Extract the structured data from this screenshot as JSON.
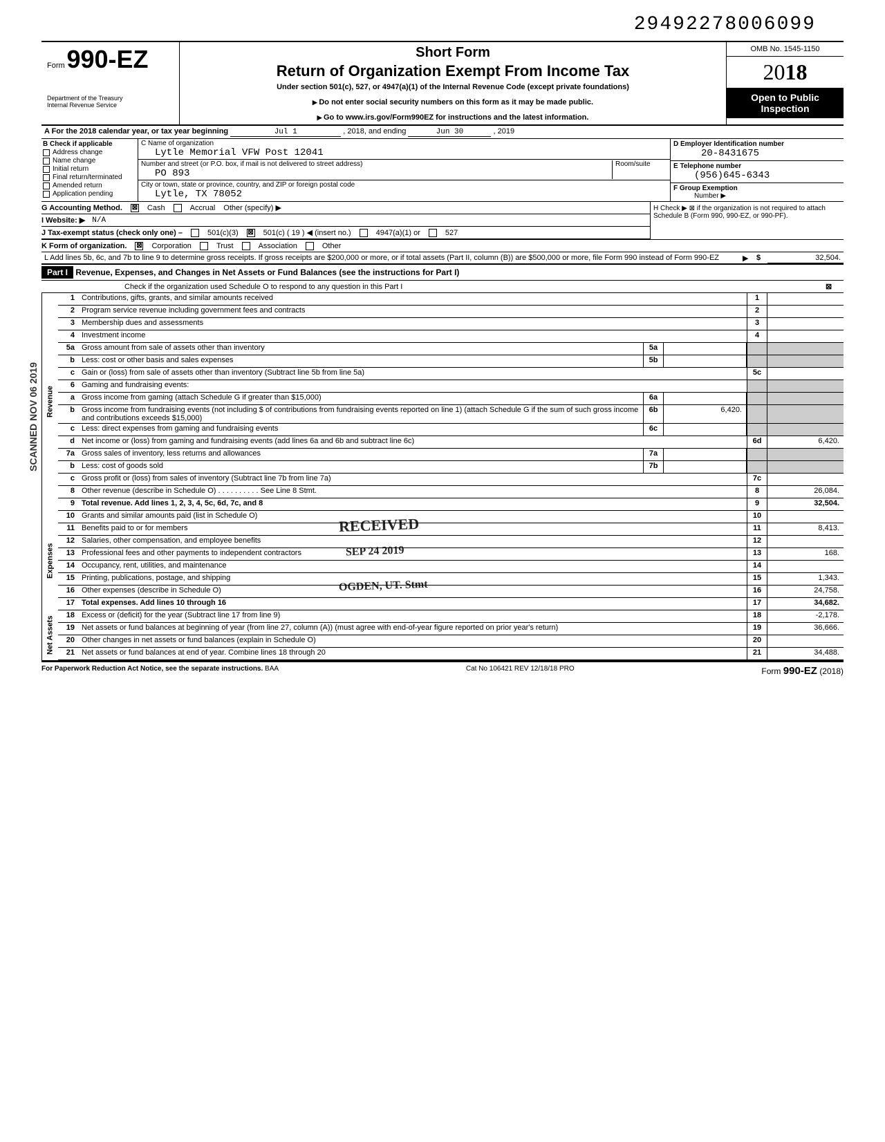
{
  "document_number": "29492278006099",
  "omb": "OMB No. 1545-1150",
  "form": {
    "prefix": "Form",
    "number": "990-EZ",
    "title_short": "Short Form",
    "title_main": "Return of Organization Exempt From Income Tax",
    "subtitle": "Under section 501(c), 527, or 4947(a)(1) of the Internal Revenue Code (except private foundations)",
    "instr1": "Do not enter social security numbers on this form as it may be made public.",
    "instr2": "Go to www.irs.gov/Form990EZ for instructions and the latest information.",
    "dept1": "Department of the Treasury",
    "dept2": "Internal Revenue Service",
    "year_prefix": "20",
    "year_bold": "18",
    "open_public": "Open to Public Inspection"
  },
  "row_a": {
    "label": "A For the 2018 calendar year, or tax year beginning",
    "begin": "Jul 1",
    "mid": ", 2018, and ending",
    "end": "Jun 30",
    "end_year": ", 2019"
  },
  "section_b": {
    "header": "B Check if applicable",
    "items": [
      "Address change",
      "Name change",
      "Initial return",
      "Final return/terminated",
      "Amended return",
      "Application pending"
    ]
  },
  "section_c": {
    "label_name": "C Name of organization",
    "org_name": "Lytle Memorial VFW Post 12041",
    "label_street": "Number and street (or P.O. box, if mail is not delivered to street address)",
    "room_label": "Room/suite",
    "street": "PO 893",
    "label_city": "City or town, state or province, country, and ZIP or foreign postal code",
    "city": "Lytle, TX 78052"
  },
  "section_d": {
    "label": "D Employer Identification number",
    "value": "20-8431675"
  },
  "section_e": {
    "label": "E Telephone number",
    "value": "(956)645-6343"
  },
  "section_f": {
    "label": "F Group Exemption",
    "number_label": "Number ▶"
  },
  "line_g": {
    "label": "G Accounting Method.",
    "opts": [
      "Cash",
      "Accrual",
      "Other (specify) ▶"
    ],
    "checked": 0
  },
  "line_h": "H Check ▶ ⊠ if the organization is not required to attach Schedule B (Form 990, 990-EZ, or 990-PF).",
  "line_i": {
    "label": "I Website: ▶",
    "value": "N/A"
  },
  "line_j": {
    "label": "J Tax-exempt status (check only one) –",
    "opts": [
      "501(c)(3)",
      "501(c) ( 19 ) ◀ (insert no.)",
      "4947(a)(1) or",
      "527"
    ],
    "checked": 1
  },
  "line_k": {
    "label": "K Form of organization.",
    "opts": [
      "Corporation",
      "Trust",
      "Association",
      "Other"
    ],
    "checked": 0
  },
  "line_l": {
    "text": "L Add lines 5b, 6c, and 7b to line 9 to determine gross receipts. If gross receipts are $200,000 or more, or if total assets (Part II, column (B)) are $500,000 or more, file Form 990 instead of Form 990-EZ",
    "value": "32,504."
  },
  "part1": {
    "label": "Part I",
    "title": "Revenue, Expenses, and Changes in Net Assets or Fund Balances (see the instructions for Part I)",
    "check_line": "Check if the organization used Schedule O to respond to any question in this Part I",
    "checked": "⊠"
  },
  "side_labels": {
    "revenue": "Revenue",
    "expenses": "Expenses",
    "net_assets": "Net Assets"
  },
  "stamps": {
    "scanned": "SCANNED NOV 06 2019",
    "received": "RECEIVED",
    "received_date": "SEP 24 2019",
    "ogden": "OGDEN, UT. Stmt"
  },
  "rows": [
    {
      "n": "1",
      "desc": "Contributions, gifts, grants, and similar amounts received",
      "rn": "1",
      "rv": ""
    },
    {
      "n": "2",
      "desc": "Program service revenue including government fees and contracts",
      "rn": "2",
      "rv": ""
    },
    {
      "n": "3",
      "desc": "Membership dues and assessments",
      "rn": "3",
      "rv": ""
    },
    {
      "n": "4",
      "desc": "Investment income",
      "rn": "4",
      "rv": ""
    },
    {
      "n": "5a",
      "desc": "Gross amount from sale of assets other than inventory",
      "mn": "5a",
      "mv": "",
      "shaded": true
    },
    {
      "n": "b",
      "desc": "Less: cost or other basis and sales expenses",
      "mn": "5b",
      "mv": "",
      "shaded": true
    },
    {
      "n": "c",
      "desc": "Gain or (loss) from sale of assets other than inventory (Subtract line 5b from line 5a)",
      "rn": "5c",
      "rv": ""
    },
    {
      "n": "6",
      "desc": "Gaming and fundraising events:",
      "header": true,
      "shaded": true
    },
    {
      "n": "a",
      "desc": "Gross income from gaming (attach Schedule G if greater than $15,000)",
      "mn": "6a",
      "mv": "",
      "shaded": true
    },
    {
      "n": "b",
      "desc": "Gross income from fundraising events (not including $             of contributions from fundraising events reported on line 1) (attach Schedule G if the sum of such gross income and contributions exceeds $15,000)",
      "mn": "6b",
      "mv": "6,420.",
      "shaded": true
    },
    {
      "n": "c",
      "desc": "Less: direct expenses from gaming and fundraising events",
      "mn": "6c",
      "mv": "",
      "shaded": true
    },
    {
      "n": "d",
      "desc": "Net income or (loss) from gaming and fundraising events (add lines 6a and 6b and subtract line 6c)",
      "rn": "6d",
      "rv": "6,420."
    },
    {
      "n": "7a",
      "desc": "Gross sales of inventory, less returns and allowances",
      "mn": "7a",
      "mv": "",
      "shaded": true
    },
    {
      "n": "b",
      "desc": "Less: cost of goods sold",
      "mn": "7b",
      "mv": "",
      "shaded": true
    },
    {
      "n": "c",
      "desc": "Gross profit or (loss) from sales of inventory (Subtract line 7b from line 7a)",
      "rn": "7c",
      "rv": ""
    },
    {
      "n": "8",
      "desc": "Other revenue (describe in Schedule O) . . . . . . . . . . See Line 8 Stmt.",
      "rn": "8",
      "rv": "26,084."
    },
    {
      "n": "9",
      "desc": "Total revenue. Add lines 1, 2, 3, 4, 5c, 6d, 7c, and 8",
      "rn": "9",
      "rv": "32,504.",
      "bold": true
    }
  ],
  "expense_rows": [
    {
      "n": "10",
      "desc": "Grants and similar amounts paid (list in Schedule O)",
      "rn": "10",
      "rv": ""
    },
    {
      "n": "11",
      "desc": "Benefits paid to or for members",
      "rn": "11",
      "rv": "8,413."
    },
    {
      "n": "12",
      "desc": "Salaries, other compensation, and employee benefits",
      "rn": "12",
      "rv": ""
    },
    {
      "n": "13",
      "desc": "Professional fees and other payments to independent contractors",
      "rn": "13",
      "rv": "168."
    },
    {
      "n": "14",
      "desc": "Occupancy, rent, utilities, and maintenance",
      "rn": "14",
      "rv": ""
    },
    {
      "n": "15",
      "desc": "Printing, publications, postage, and shipping",
      "rn": "15",
      "rv": "1,343."
    },
    {
      "n": "16",
      "desc": "Other expenses (describe in Schedule O)",
      "rn": "16",
      "rv": "24,758."
    },
    {
      "n": "17",
      "desc": "Total expenses. Add lines 10 through 16",
      "rn": "17",
      "rv": "34,682.",
      "bold": true
    }
  ],
  "asset_rows": [
    {
      "n": "18",
      "desc": "Excess or (deficit) for the year (Subtract line 17 from line 9)",
      "rn": "18",
      "rv": "-2,178."
    },
    {
      "n": "19",
      "desc": "Net assets or fund balances at beginning of year (from line 27, column (A)) (must agree with end-of-year figure reported on prior year's return)",
      "rn": "19",
      "rv": "36,666."
    },
    {
      "n": "20",
      "desc": "Other changes in net assets or fund balances (explain in Schedule O)",
      "rn": "20",
      "rv": ""
    },
    {
      "n": "21",
      "desc": "Net assets or fund balances at end of year. Combine lines 18 through 20",
      "rn": "21",
      "rv": "34,488."
    }
  ],
  "footer": {
    "left": "For Paperwork Reduction Act Notice, see the separate instructions.",
    "baa": "BAA",
    "cat": "Cat No 106421 REV 12/18/18 PRO",
    "form": "Form",
    "form_num": "990-EZ",
    "form_year": "(2018)"
  },
  "colors": {
    "black": "#000000",
    "white": "#ffffff",
    "shade": "#cccccc"
  }
}
